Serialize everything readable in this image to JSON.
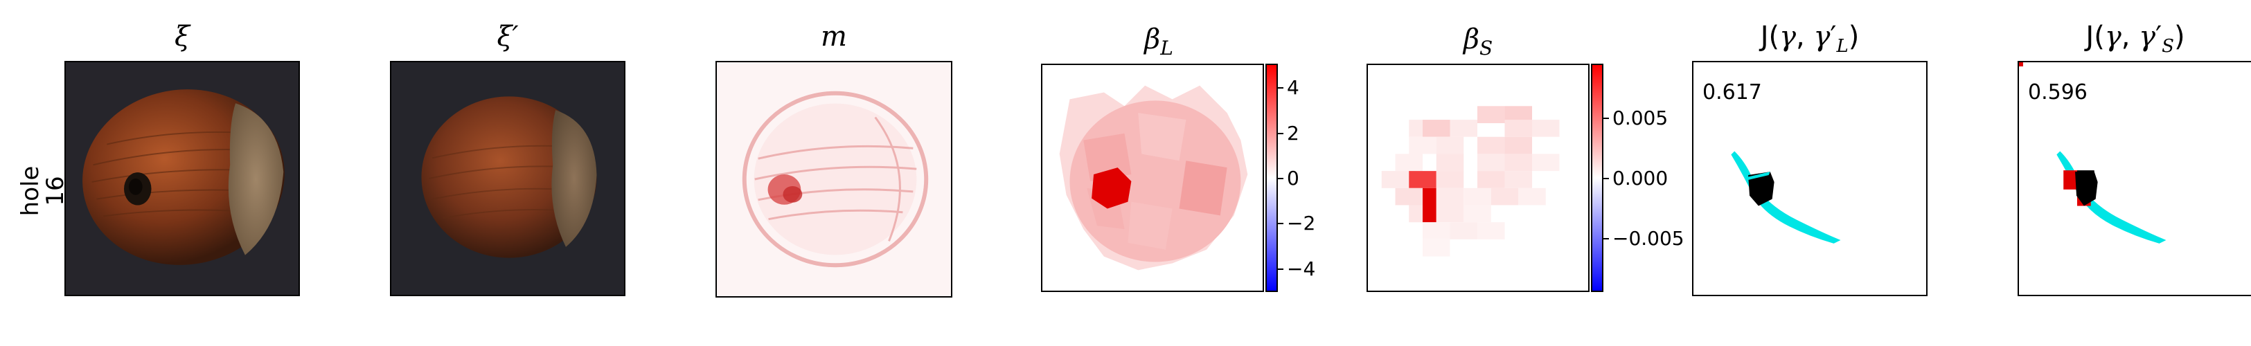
{
  "row_label": {
    "line1": "hole",
    "line2": "16"
  },
  "panels": [
    {
      "title": "ξ"
    },
    {
      "title": "ξ′"
    },
    {
      "title": "m"
    },
    {
      "title": "β_L",
      "title_main": "β",
      "title_sub": "L"
    },
    {
      "title": "β_S",
      "title_main": "β",
      "title_sub": "S"
    },
    {
      "title": "J(γ, γ′_L)",
      "score": "0.617"
    },
    {
      "title": "J(γ, γ′_S)",
      "score": "0.596"
    }
  ],
  "colorbar_L": {
    "ticks": [
      "4",
      "2",
      "0",
      "−2",
      "−4"
    ],
    "min": -5,
    "max": 5
  },
  "colorbar_S": {
    "ticks": [
      "0.005",
      "0.000",
      "−0.005"
    ],
    "min": -0.0095,
    "max": 0.0095
  },
  "colors": {
    "positive": "#ff0000",
    "negative": "#0000ff",
    "gt": "#00e5e5",
    "pred": "#000000"
  }
}
